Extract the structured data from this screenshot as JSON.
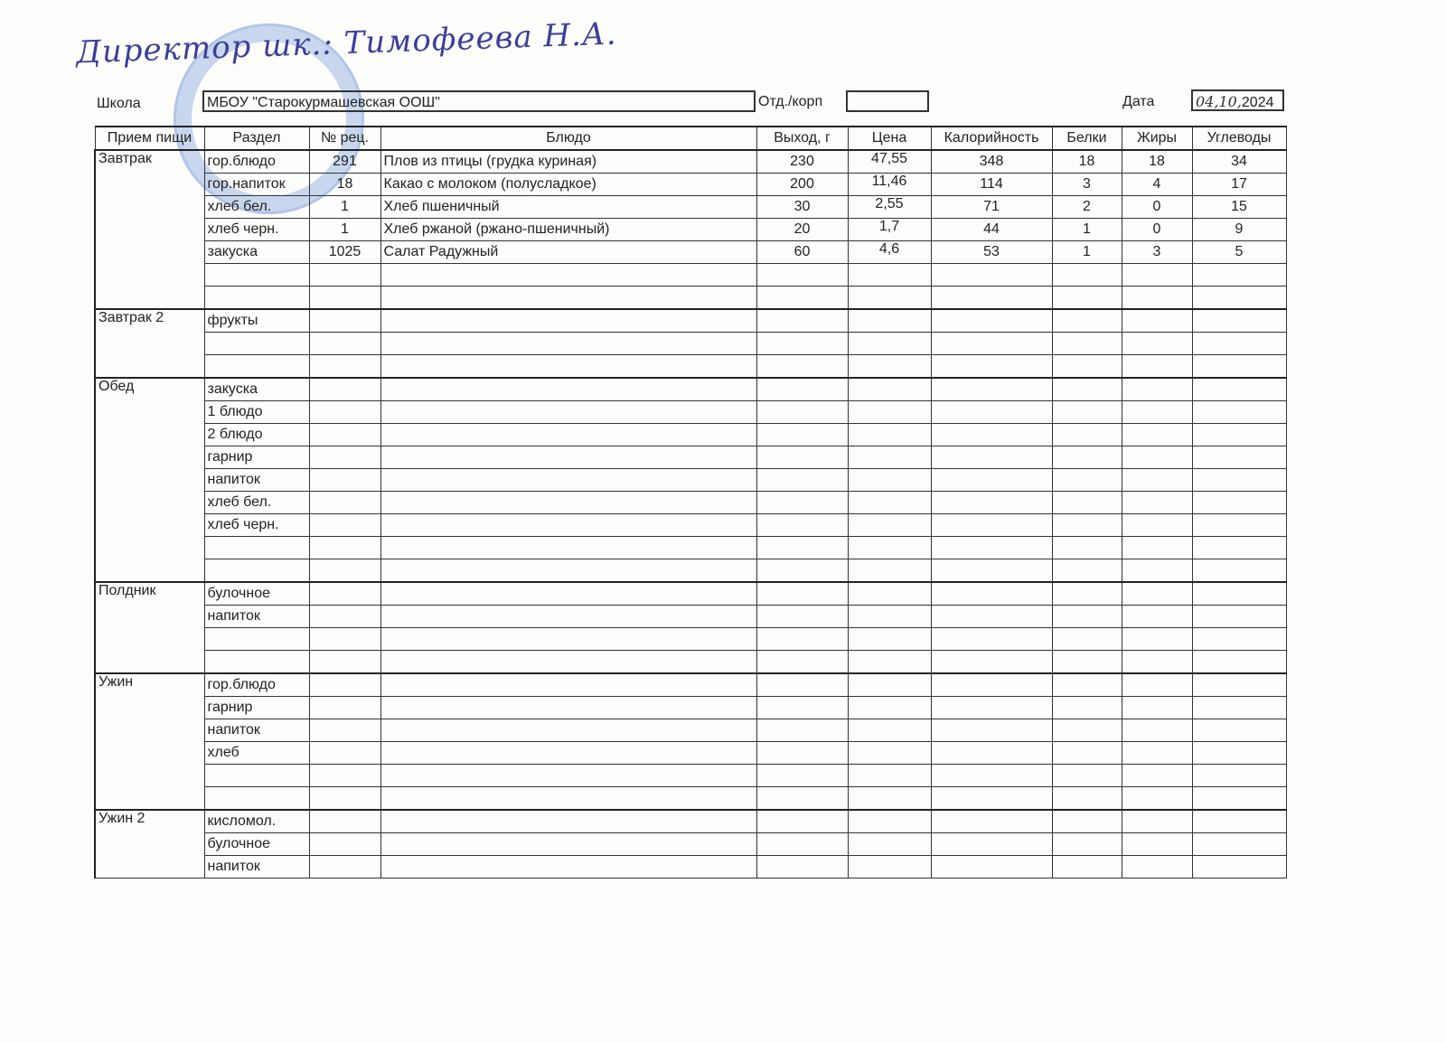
{
  "signature": "Директор шк.: Тимофеева Н.А.",
  "header": {
    "school_label": "Школа",
    "school": "МБОУ \"Старокурмашевская ООШ\"",
    "dept_label": "Отд./корп",
    "dept": "",
    "date_label": "Дата",
    "date_hand": "04,10,",
    "date_year": "2024"
  },
  "columns": [
    "Прием пищи",
    "Раздел",
    "№ рец.",
    "Блюдо",
    "Выход, г",
    "Цена",
    "Калорийность",
    "Белки",
    "Жиры",
    "Углеводы"
  ],
  "meals": [
    {
      "name": "Завтрак",
      "rows": [
        [
          "гор.блюдо",
          "291",
          "Плов из птицы (грудка куриная)",
          "230",
          "47,55",
          "348",
          "18",
          "18",
          "34"
        ],
        [
          "гор.напиток",
          "18",
          "Какао с молоком (полусладкое)",
          "200",
          "11,46",
          "114",
          "3",
          "4",
          "17"
        ],
        [
          "хлеб бел.",
          "1",
          "Хлеб пшеничный",
          "30",
          "2,55",
          "71",
          "2",
          "0",
          "15"
        ],
        [
          "хлеб черн.",
          "1",
          "Хлеб ржаной (ржано-пшеничный)",
          "20",
          "1,7",
          "44",
          "1",
          "0",
          "9"
        ],
        [
          "закуска",
          "1025",
          "Салат Радужный",
          "60",
          "4,6",
          "53",
          "1",
          "3",
          "5"
        ],
        [
          "",
          "",
          "",
          "",
          "",
          "",
          "",
          "",
          ""
        ],
        [
          "",
          "",
          "",
          "",
          "",
          "",
          "",
          "",
          ""
        ]
      ]
    },
    {
      "name": "Завтрак 2",
      "rows": [
        [
          "фрукты"
        ],
        [
          ""
        ],
        [
          ""
        ]
      ]
    },
    {
      "name": "Обед",
      "rows": [
        [
          "закуска"
        ],
        [
          "1 блюдо"
        ],
        [
          "2 блюдо"
        ],
        [
          "гарнир"
        ],
        [
          "напиток"
        ],
        [
          "хлеб бел."
        ],
        [
          "хлеб черн."
        ],
        [
          ""
        ],
        [
          ""
        ]
      ]
    },
    {
      "name": "Полдник",
      "rows": [
        [
          "булочное"
        ],
        [
          "напиток"
        ],
        [
          ""
        ],
        [
          ""
        ]
      ]
    },
    {
      "name": "Ужин",
      "rows": [
        [
          "гор.блюдо"
        ],
        [
          "гарнир"
        ],
        [
          "напиток"
        ],
        [
          "хлеб"
        ],
        [
          ""
        ],
        [
          ""
        ]
      ]
    },
    {
      "name": "Ужин 2",
      "rows": [
        [
          "кисломол."
        ],
        [
          "булочное"
        ],
        [
          "напиток"
        ]
      ]
    }
  ]
}
